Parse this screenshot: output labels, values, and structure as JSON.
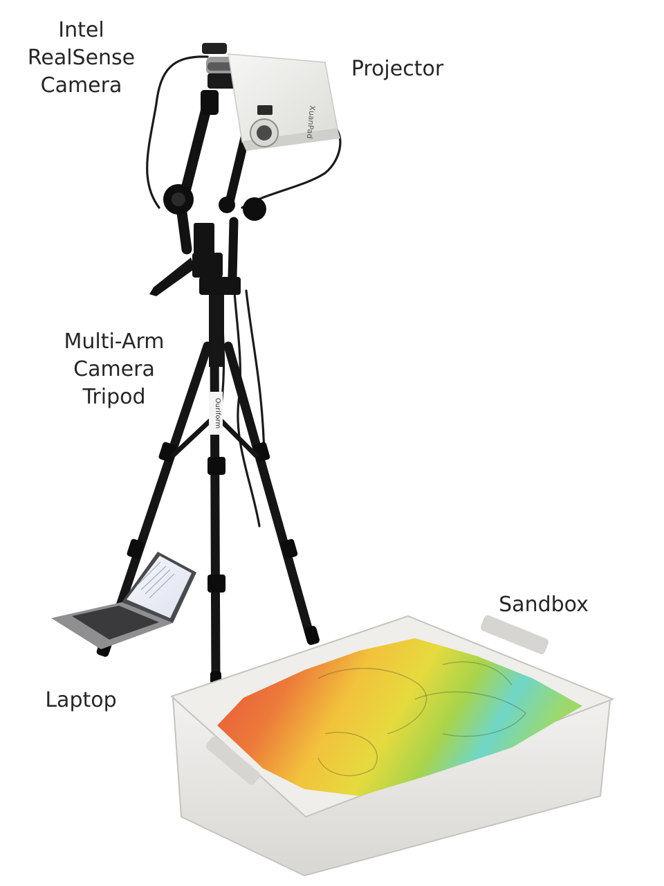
{
  "labels": {
    "camera": [
      "Intel",
      "RealSense",
      "Camera"
    ],
    "projector": "Projector",
    "tripod": [
      "Multi-Arm",
      "Camera",
      "Tripod"
    ],
    "sandbox": "Sandbox",
    "laptop": "Laptop"
  },
  "device_text": {
    "projector_brand": "XuanPad",
    "tripod_brand": "Ouriform"
  },
  "colors": {
    "background": "#ffffff",
    "label_text": "#262626",
    "tripod_black": "#151515",
    "projector_body": "#ececea",
    "bin_plastic": "#e6e4e1",
    "sand_red": "#e8503a",
    "sand_orange": "#f0a030",
    "sand_yellow": "#e8d63a",
    "sand_green": "#8ccf4a",
    "sand_cyan": "#5fd0e0"
  }
}
